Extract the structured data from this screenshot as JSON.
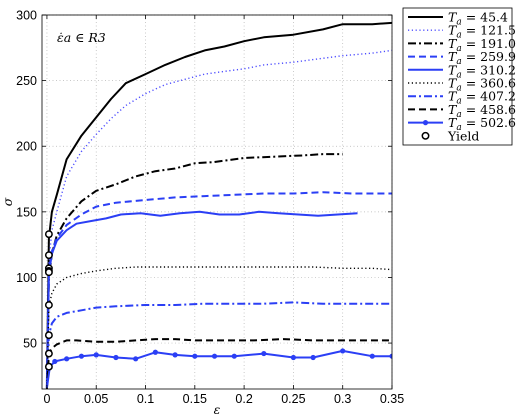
{
  "chart_data": {
    "type": "line",
    "title": "",
    "annotation": "ε̇a ∈ R3",
    "xlabel": "ε",
    "ylabel": "σ",
    "xlim": [
      -0.005,
      0.35
    ],
    "ylim": [
      15,
      300
    ],
    "xticks": [
      0,
      0.05,
      0.1,
      0.15,
      0.2,
      0.25,
      0.3,
      0.35
    ],
    "xtick_labels": [
      "0",
      "0.05",
      "0.1",
      "0.15",
      "0.2",
      "0.25",
      "0.3",
      "0.35"
    ],
    "yticks": [
      50,
      100,
      150,
      200,
      250,
      300
    ],
    "ytick_labels": [
      "50",
      "100",
      "150",
      "200",
      "250",
      "300"
    ],
    "grid": true,
    "legend_position": "outside-top-right",
    "series": [
      {
        "name": "Ta = 45.4",
        "color": "#000000",
        "style": "solid",
        "marker": "none",
        "x": [
          0,
          0.002,
          0.005,
          0.01,
          0.02,
          0.035,
          0.05,
          0.065,
          0.08,
          0.1,
          0.12,
          0.14,
          0.16,
          0.18,
          0.2,
          0.22,
          0.25,
          0.28,
          0.3,
          0.33,
          0.35
        ],
        "y": [
          20,
          130,
          150,
          163,
          190,
          208,
          222,
          236,
          248,
          255,
          262,
          268,
          273,
          276,
          280,
          283,
          285,
          289,
          293,
          293,
          294
        ]
      },
      {
        "name": "Ta = 121.5",
        "color": "#4d4dff",
        "style": "dotted",
        "marker": "none",
        "x": [
          0,
          0.002,
          0.005,
          0.01,
          0.02,
          0.035,
          0.05,
          0.065,
          0.08,
          0.1,
          0.12,
          0.14,
          0.16,
          0.18,
          0.2,
          0.22,
          0.25,
          0.28,
          0.3,
          0.33,
          0.35
        ],
        "y": [
          18,
          112,
          136,
          150,
          177,
          196,
          209,
          221,
          231,
          240,
          247,
          251,
          255,
          257,
          259,
          262,
          264,
          267,
          269,
          271,
          273
        ]
      },
      {
        "name": "Ta = 191.0",
        "color": "#000000",
        "style": "dashdot",
        "marker": "none",
        "x": [
          0,
          0.002,
          0.005,
          0.01,
          0.02,
          0.035,
          0.05,
          0.07,
          0.09,
          0.11,
          0.13,
          0.15,
          0.17,
          0.2,
          0.23,
          0.26,
          0.28,
          0.3
        ],
        "y": [
          16,
          100,
          118,
          132,
          145,
          158,
          166,
          171,
          177,
          181,
          183,
          187,
          188,
          191,
          192,
          193,
          194,
          194
        ]
      },
      {
        "name": "Ta = 259.9",
        "color": "#2b3ff5",
        "style": "dashed",
        "marker": "none",
        "x": [
          0,
          0.002,
          0.005,
          0.01,
          0.02,
          0.035,
          0.05,
          0.07,
          0.1,
          0.13,
          0.16,
          0.19,
          0.22,
          0.25,
          0.28,
          0.31,
          0.35
        ],
        "y": [
          16,
          105,
          120,
          130,
          140,
          148,
          154,
          157,
          159,
          161,
          162,
          163,
          164,
          164,
          165,
          164,
          164
        ]
      },
      {
        "name": "Ta = 310.2",
        "color": "#2b3ff5",
        "style": "solid",
        "marker": "none",
        "x": [
          0,
          0.002,
          0.005,
          0.01,
          0.02,
          0.03,
          0.045,
          0.06,
          0.075,
          0.095,
          0.115,
          0.135,
          0.155,
          0.175,
          0.195,
          0.215,
          0.235,
          0.255,
          0.275,
          0.295,
          0.315
        ],
        "y": [
          16,
          103,
          118,
          128,
          136,
          141,
          143,
          145,
          148,
          149,
          147,
          149,
          150,
          148,
          148,
          150,
          149,
          148,
          147,
          148,
          149
        ]
      },
      {
        "name": "Ta = 360.6",
        "color": "#000000",
        "style": "dotted",
        "marker": "none",
        "x": [
          0,
          0.002,
          0.005,
          0.01,
          0.02,
          0.035,
          0.05,
          0.07,
          0.09,
          0.12,
          0.15,
          0.18,
          0.21,
          0.24,
          0.27,
          0.3,
          0.33,
          0.35
        ],
        "y": [
          15,
          78,
          88,
          95,
          100,
          103,
          105,
          107,
          108,
          108,
          108,
          108,
          108,
          108,
          108,
          107,
          107,
          106
        ]
      },
      {
        "name": "Ta = 407.2",
        "color": "#2b3ff5",
        "style": "dashdot",
        "marker": "none",
        "x": [
          0,
          0.002,
          0.005,
          0.01,
          0.02,
          0.035,
          0.05,
          0.07,
          0.1,
          0.13,
          0.16,
          0.19,
          0.22,
          0.25,
          0.28,
          0.31,
          0.35
        ],
        "y": [
          15,
          56,
          65,
          70,
          73,
          75,
          77,
          78,
          79,
          79,
          80,
          80,
          80,
          81,
          80,
          80,
          80
        ]
      },
      {
        "name": "Ta = 458.6",
        "color": "#000000",
        "style": "dashed",
        "marker": "none",
        "x": [
          0,
          0.002,
          0.005,
          0.01,
          0.02,
          0.03,
          0.05,
          0.07,
          0.09,
          0.11,
          0.13,
          0.15,
          0.18,
          0.21,
          0.24,
          0.27,
          0.3,
          0.33,
          0.35
        ],
        "y": [
          15,
          42,
          46,
          49,
          52,
          52,
          51,
          51,
          52,
          53,
          53,
          52,
          52,
          52,
          53,
          52,
          52,
          52,
          52
        ]
      },
      {
        "name": "Ta = 502.6",
        "color": "#2b3ff5",
        "style": "solid",
        "marker": "dot",
        "x": [
          0,
          0.003,
          0.008,
          0.02,
          0.035,
          0.05,
          0.07,
          0.09,
          0.11,
          0.13,
          0.15,
          0.17,
          0.19,
          0.22,
          0.25,
          0.27,
          0.3,
          0.33,
          0.35
        ],
        "y": [
          16,
          32,
          36,
          38,
          40,
          41,
          39,
          38,
          43,
          41,
          40,
          40,
          40,
          42,
          39,
          39,
          44,
          40,
          40
        ]
      }
    ],
    "yield_points": {
      "name": "Yield",
      "x": [
        0.002,
        0.002,
        0.002,
        0.002,
        0.002,
        0.002,
        0.002,
        0.002,
        0.002
      ],
      "y": [
        133,
        117,
        107,
        105,
        79,
        56,
        42,
        32,
        104
      ]
    }
  }
}
